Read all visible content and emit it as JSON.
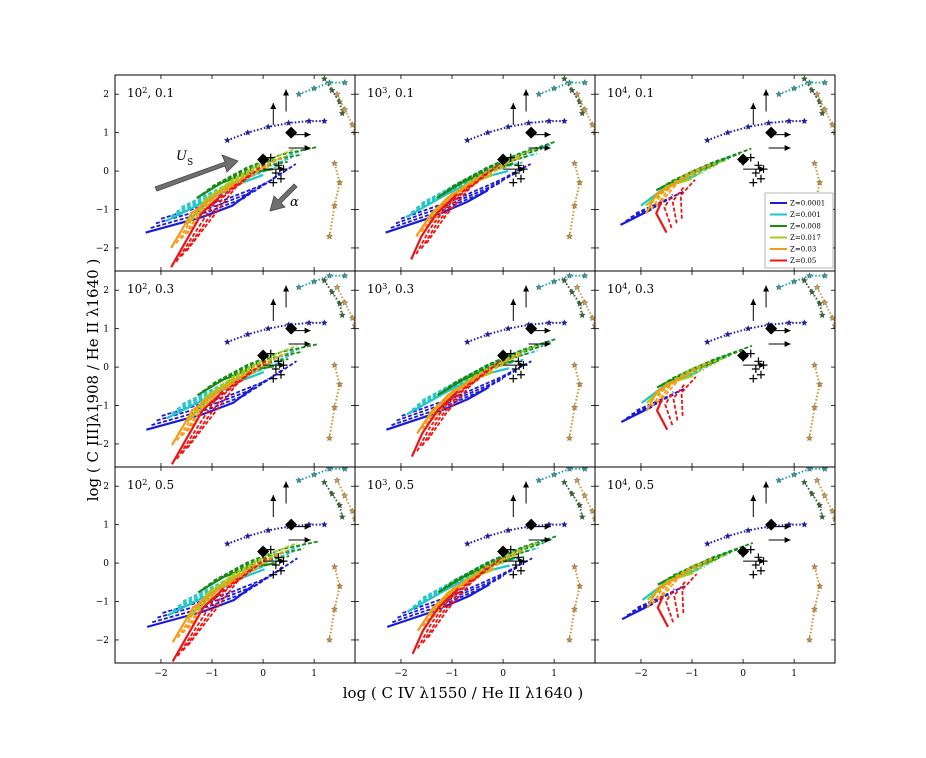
{
  "chart_data": {
    "type": "line",
    "title": "",
    "xlabel": "log ( C IV λ1550 / He II λ1640 )",
    "ylabel": "log ( C III]λ1908 / He II λ1640 )",
    "xlim": [
      -2.9,
      1.8
    ],
    "ylim": [
      -2.6,
      2.5
    ],
    "xticks": [
      "−2",
      "−1",
      "0",
      "1"
    ],
    "xtick_values": [
      -2,
      -1,
      0,
      1
    ],
    "yticks": [
      "−2",
      "−1",
      "0",
      "1",
      "2"
    ],
    "ytick_values": [
      -2,
      -1,
      0,
      1,
      2
    ],
    "grid": false,
    "legend_position": "right, top-right panel",
    "legend": [
      {
        "label": "Z=0.0001",
        "color": "#1a1adb"
      },
      {
        "label": "Z=0.001",
        "color": "#22c6c6"
      },
      {
        "label": "Z=0.008",
        "color": "#178a17"
      },
      {
        "label": "Z=0.017",
        "color": "#a6cc1e"
      },
      {
        "label": "Z=0.03",
        "color": "#f59a18"
      },
      {
        "label": "Z=0.05",
        "color": "#ee1414"
      }
    ],
    "annotations": {
      "us_symbol": "U",
      "us_sub": "S",
      "alpha_symbol": "α"
    },
    "panels": [
      {
        "id": "p1",
        "label_base": "10",
        "label_exp": "2",
        "label_rest": ", 0.1"
      },
      {
        "id": "p2",
        "label_base": "10",
        "label_exp": "3",
        "label_rest": ", 0.1"
      },
      {
        "id": "p3",
        "label_base": "10",
        "label_exp": "4",
        "label_rest": ", 0.1"
      },
      {
        "id": "p4",
        "label_base": "10",
        "label_exp": "2",
        "label_rest": ", 0.3"
      },
      {
        "id": "p5",
        "label_base": "10",
        "label_exp": "3",
        "label_rest": ", 0.3"
      },
      {
        "id": "p6",
        "label_base": "10",
        "label_exp": "4",
        "label_rest": ", 0.3"
      },
      {
        "id": "p7",
        "label_base": "10",
        "label_exp": "2",
        "label_rest": ", 0.5"
      },
      {
        "id": "p8",
        "label_base": "10",
        "label_exp": "3",
        "label_rest": ", 0.5"
      },
      {
        "id": "p9",
        "label_base": "10",
        "label_exp": "4",
        "label_rest": ", 0.5"
      }
    ],
    "series_grids": {
      "n100": [
        {
          "name": "Z=0.0001",
          "color": "#1a1adb",
          "solid": [
            [
              -2.3,
              -1.6
            ],
            [
              -1.2,
              -1.2
            ],
            [
              -0.6,
              -0.9
            ],
            [
              -0.2,
              -0.5
            ]
          ],
          "dash_offsets": [
            [
              0.1,
              0.12
            ],
            [
              0.2,
              0.24
            ],
            [
              0.3,
              0.36
            ]
          ]
        },
        {
          "name": "Z=0.001",
          "color": "#22c6c6",
          "solid": [
            [
              -1.9,
              -1.3
            ],
            [
              -1.0,
              -0.7
            ],
            [
              -0.4,
              -0.3
            ],
            [
              0.0,
              -0.1
            ]
          ],
          "dash_offsets": [
            [
              0.1,
              0.12
            ],
            [
              0.2,
              0.24
            ],
            [
              0.3,
              0.36
            ]
          ]
        },
        {
          "name": "Z=0.008",
          "color": "#178a17",
          "solid": [
            [
              -1.3,
              -0.7
            ],
            [
              -0.8,
              -0.3
            ],
            [
              -0.3,
              -0.05
            ],
            [
              0.2,
              0.05
            ]
          ],
          "dash_offsets": [
            [
              0.1,
              0.1
            ],
            [
              0.2,
              0.2
            ],
            [
              0.3,
              0.3
            ]
          ]
        },
        {
          "name": "Z=0.017",
          "color": "#a6cc1e",
          "solid": [
            [
              -1.5,
              -1.4
            ],
            [
              -1.1,
              -0.7
            ],
            [
              -0.6,
              -0.3
            ],
            [
              -0.2,
              -0.1
            ]
          ],
          "dash_offsets": [
            [
              0.1,
              0.12
            ],
            [
              0.2,
              0.24
            ],
            [
              0.3,
              0.36
            ]
          ]
        },
        {
          "name": "Z=0.03",
          "color": "#f59a18",
          "solid": [
            [
              -1.8,
              -2.0
            ],
            [
              -1.4,
              -1.1
            ],
            [
              -0.9,
              -0.6
            ],
            [
              -0.4,
              -0.3
            ]
          ],
          "dash_offsets": [
            [
              0.1,
              0.12
            ],
            [
              0.2,
              0.24
            ],
            [
              0.3,
              0.36
            ]
          ]
        },
        {
          "name": "Z=0.05",
          "color": "#ee1414",
          "solid": [
            [
              -1.8,
              -2.5
            ],
            [
              -1.5,
              -1.8
            ],
            [
              -1.2,
              -1.1
            ],
            [
              -0.8,
              -0.6
            ]
          ],
          "dash_offsets": [
            [
              0.1,
              0.14
            ],
            [
              0.2,
              0.28
            ],
            [
              0.3,
              0.42
            ]
          ]
        }
      ],
      "n1000": [
        {
          "name": "Z=0.0001",
          "color": "#1a1adb",
          "solid": [
            [
              -2.3,
              -1.6
            ],
            [
              -1.4,
              -1.2
            ],
            [
              -0.7,
              -0.8
            ],
            [
              -0.3,
              -0.5
            ]
          ],
          "dash_offsets": [
            [
              0.1,
              0.12
            ],
            [
              0.2,
              0.24
            ],
            [
              0.3,
              0.36
            ]
          ]
        },
        {
          "name": "Z=0.001",
          "color": "#22c6c6",
          "solid": [
            [
              -1.9,
              -1.2
            ],
            [
              -1.1,
              -0.6
            ],
            [
              -0.5,
              -0.2
            ],
            [
              0.1,
              0.0
            ]
          ],
          "dash_offsets": [
            [
              0.1,
              0.12
            ],
            [
              0.2,
              0.24
            ],
            [
              0.3,
              0.36
            ]
          ]
        },
        {
          "name": "Z=0.008",
          "color": "#178a17",
          "solid": [
            [
              -1.3,
              -0.7
            ],
            [
              -0.8,
              -0.3
            ],
            [
              -0.3,
              0.0
            ],
            [
              0.2,
              0.2
            ]
          ],
          "dash_offsets": [
            [
              0.1,
              0.1
            ],
            [
              0.2,
              0.2
            ],
            [
              0.3,
              0.3
            ]
          ]
        },
        {
          "name": "Z=0.017",
          "color": "#a6cc1e",
          "solid": [
            [
              -1.5,
              -1.3
            ],
            [
              -1.1,
              -0.7
            ],
            [
              -0.6,
              -0.3
            ],
            [
              -0.2,
              -0.1
            ]
          ],
          "dash_offsets": [
            [
              0.1,
              0.12
            ],
            [
              0.2,
              0.24
            ],
            [
              0.3,
              0.36
            ]
          ]
        },
        {
          "name": "Z=0.03",
          "color": "#f59a18",
          "solid": [
            [
              -1.7,
              -1.7
            ],
            [
              -1.4,
              -1.1
            ],
            [
              -1.0,
              -0.6
            ],
            [
              -0.5,
              -0.3
            ]
          ],
          "dash_offsets": [
            [
              0.1,
              0.12
            ],
            [
              0.2,
              0.24
            ],
            [
              0.3,
              0.36
            ]
          ]
        },
        {
          "name": "Z=0.05",
          "color": "#ee1414",
          "solid": [
            [
              -1.8,
              -2.3
            ],
            [
              -1.6,
              -1.7
            ],
            [
              -1.3,
              -1.1
            ],
            [
              -0.9,
              -0.6
            ]
          ],
          "dash_offsets": [
            [
              0.1,
              0.14
            ],
            [
              0.2,
              0.28
            ],
            [
              0.3,
              0.42
            ]
          ]
        }
      ],
      "n10000": [
        {
          "name": "Z=0.0001",
          "color": "#1a1adb",
          "solid": [
            [
              -2.4,
              -1.4
            ],
            [
              -2.1,
              -1.2
            ],
            [
              -1.8,
              -1.0
            ]
          ],
          "dash_offsets": [
            [
              0.1,
              0.1
            ],
            [
              0.2,
              0.2
            ],
            [
              0.3,
              0.3
            ]
          ]
        },
        {
          "name": "Z=0.001",
          "color": "#22c6c6",
          "solid": [
            [
              -2.0,
              -0.9
            ],
            [
              -1.5,
              -0.4
            ],
            [
              -0.9,
              -0.1
            ]
          ],
          "dash_offsets": [
            [
              0.1,
              0.1
            ],
            [
              0.2,
              0.2
            ],
            [
              0.3,
              0.3
            ]
          ]
        },
        {
          "name": "Z=0.008",
          "color": "#178a17",
          "solid": [
            [
              -1.7,
              -0.5
            ],
            [
              -1.1,
              -0.1
            ],
            [
              -0.5,
              0.2
            ]
          ],
          "dash_offsets": [
            [
              0.1,
              0.08
            ],
            [
              0.2,
              0.16
            ],
            [
              0.3,
              0.24
            ]
          ]
        },
        {
          "name": "Z=0.017",
          "color": "#a6cc1e",
          "solid": [
            [
              -1.9,
              -0.9
            ],
            [
              -1.5,
              -0.4
            ],
            [
              -1.0,
              -0.2
            ]
          ],
          "dash_offsets": [
            [
              0.1,
              0.1
            ],
            [
              0.2,
              0.2
            ],
            [
              0.3,
              0.3
            ]
          ]
        },
        {
          "name": "Z=0.03",
          "color": "#f59a18",
          "solid": [
            [
              -1.9,
              -1.1
            ],
            [
              -1.7,
              -0.6
            ],
            [
              -1.3,
              -0.3
            ]
          ],
          "dash_offsets": [
            [
              0.1,
              0.1
            ],
            [
              0.2,
              0.2
            ],
            [
              0.3,
              0.3
            ]
          ]
        },
        {
          "name": "Z=0.05",
          "color": "#ee1414",
          "solid": [
            [
              -1.5,
              -1.6
            ],
            [
              -1.7,
              -1.1
            ],
            [
              -1.6,
              -0.8
            ]
          ],
          "dash_offsets": [
            [
              0.1,
              0.12
            ],
            [
              0.2,
              0.24
            ],
            [
              0.3,
              0.36
            ]
          ]
        }
      ]
    },
    "star_tracks": [
      {
        "color": "#1a1ab0",
        "points": [
          [
            -0.7,
            0.8
          ],
          [
            -0.3,
            1.0
          ],
          [
            0.1,
            1.15
          ],
          [
            0.5,
            1.25
          ],
          [
            0.9,
            1.3
          ],
          [
            1.2,
            1.3
          ]
        ]
      },
      {
        "color": "#2a9fa0",
        "points": [
          [
            0.7,
            2.0
          ],
          [
            1.0,
            2.15
          ],
          [
            1.3,
            2.3
          ],
          [
            1.6,
            2.3
          ]
        ]
      },
      {
        "color": "#2f6a2f",
        "points": [
          [
            1.2,
            2.4
          ],
          [
            1.35,
            2.1
          ],
          [
            1.5,
            1.8
          ],
          [
            1.55,
            1.5
          ]
        ]
      },
      {
        "color": "#c9a24a",
        "points": [
          [
            1.45,
            2.0
          ],
          [
            1.6,
            1.6
          ],
          [
            1.75,
            1.2
          ],
          [
            1.8,
            1.0
          ]
        ]
      },
      {
        "color": "#d39030",
        "points": [
          [
            1.4,
            0.2
          ],
          [
            1.5,
            -0.3
          ],
          [
            1.4,
            -0.9
          ],
          [
            1.3,
            -1.7
          ]
        ]
      }
    ],
    "observations": {
      "diamonds": [
        [
          0.0,
          0.3
        ],
        [
          0.55,
          1.0
        ]
      ],
      "limit_arrows": [
        {
          "from": [
            0.5,
            0.6
          ],
          "dir": "right"
        },
        {
          "from": [
            0.2,
            1.2
          ],
          "dir": "up"
        },
        {
          "from": [
            0.45,
            1.55
          ],
          "dir": "up"
        },
        {
          "from": [
            0.5,
            0.95
          ],
          "dir": "right"
        },
        {
          "from": [
            0.0,
            0.05
          ],
          "dir": "right"
        }
      ],
      "crosses": [
        [
          0.0,
          0.25
        ],
        [
          0.15,
          0.35
        ],
        [
          0.3,
          0.15
        ],
        [
          0.25,
          -0.05
        ],
        [
          0.35,
          -0.2
        ],
        [
          0.2,
          -0.3
        ],
        [
          0.4,
          0.05
        ]
      ]
    }
  }
}
